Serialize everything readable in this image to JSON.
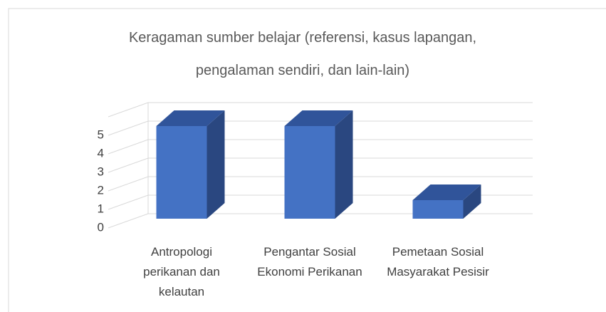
{
  "chart_data": {
    "type": "bar3d",
    "title": "Keragaman sumber belajar (referensi, kasus lapangan, pengalaman sendiri, dan lain-lain)",
    "categories": [
      "Antropologi perikanan dan kelautan",
      "Pengantar Sosial Ekonomi Perikanan",
      "Pemetaan Sosial Masyarakat Pesisir"
    ],
    "values": [
      5,
      5,
      1
    ],
    "color": "#4472c4",
    "ylim": [
      0,
      6
    ],
    "yticks": [
      0,
      1,
      2,
      3,
      4,
      5
    ],
    "grid": true
  }
}
